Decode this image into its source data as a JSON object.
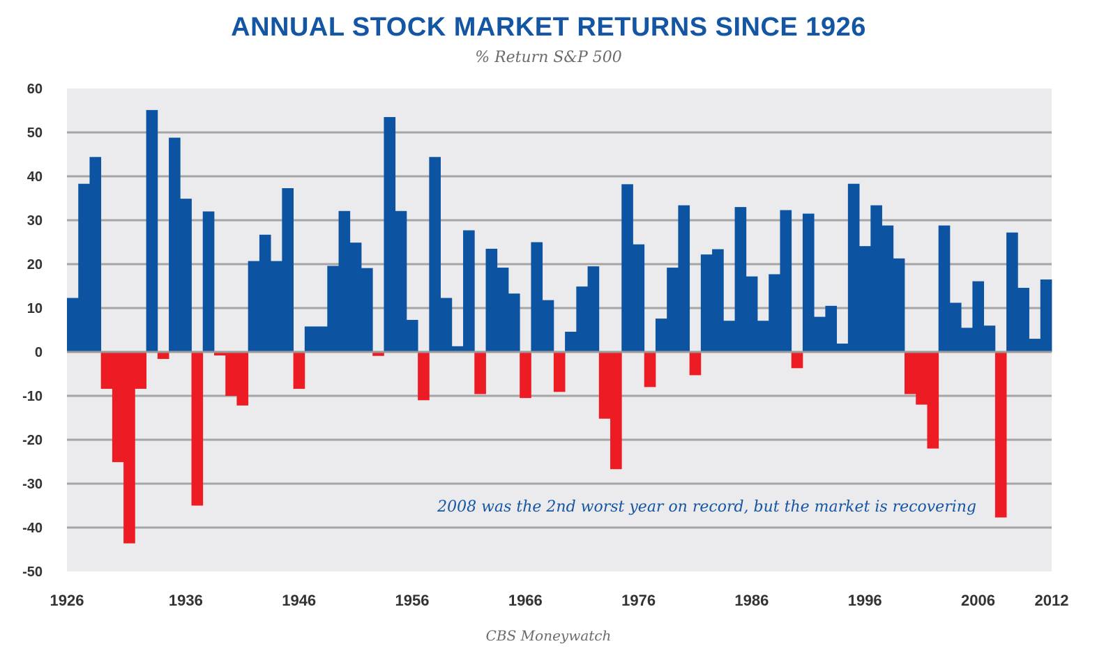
{
  "chart_data": {
    "type": "bar",
    "title": "ANNUAL STOCK MARKET RETURNS SINCE 1926",
    "subtitle": "% Return S&P 500",
    "source": "CBS Moneywatch",
    "annotation": "2008 was the 2nd worst year on record, but the market is recovering",
    "x": [
      1926,
      1927,
      1928,
      1929,
      1930,
      1931,
      1932,
      1933,
      1934,
      1935,
      1936,
      1937,
      1938,
      1939,
      1940,
      1941,
      1942,
      1943,
      1944,
      1945,
      1946,
      1947,
      1948,
      1949,
      1950,
      1951,
      1952,
      1953,
      1954,
      1955,
      1956,
      1957,
      1958,
      1959,
      1960,
      1961,
      1962,
      1963,
      1964,
      1965,
      1966,
      1967,
      1968,
      1969,
      1970,
      1971,
      1972,
      1973,
      1974,
      1975,
      1976,
      1977,
      1978,
      1979,
      1980,
      1981,
      1982,
      1983,
      1984,
      1985,
      1986,
      1987,
      1988,
      1989,
      1990,
      1991,
      1992,
      1993,
      1994,
      1995,
      1996,
      1997,
      1998,
      1999,
      2000,
      2001,
      2002,
      2003,
      2004,
      2005,
      2006,
      2007,
      2008,
      2009,
      2010,
      2011,
      2012
    ],
    "values": [
      12.3,
      38.3,
      44.4,
      -8.4,
      -25.1,
      -43.6,
      -8.4,
      55.1,
      -1.6,
      48.8,
      34.9,
      -35.0,
      32.0,
      -0.8,
      -10.0,
      -12.2,
      20.7,
      26.7,
      20.7,
      37.3,
      -8.4,
      5.8,
      5.8,
      19.6,
      32.1,
      24.9,
      19.1,
      -0.9,
      53.5,
      32.1,
      7.3,
      -11.0,
      44.4,
      12.3,
      1.3,
      27.7,
      -9.6,
      23.5,
      19.2,
      13.3,
      -10.5,
      25.0,
      11.8,
      -9.1,
      4.6,
      14.9,
      19.5,
      -15.2,
      -26.7,
      38.2,
      24.5,
      -8.0,
      7.6,
      19.2,
      33.4,
      -5.3,
      22.2,
      23.4,
      7.1,
      33.0,
      17.2,
      7.1,
      17.7,
      32.3,
      -3.7,
      31.5,
      8.0,
      10.5,
      1.9,
      38.3,
      24.1,
      33.4,
      28.8,
      21.3,
      -9.6,
      -12.0,
      -22.0,
      28.8,
      11.2,
      5.5,
      16.1,
      6.0,
      -37.7,
      27.2,
      14.6,
      3.0,
      16.5
    ],
    "x_tick_labels": [
      "1926",
      "1936",
      "1946",
      "1956",
      "1966",
      "1976",
      "1986",
      "1996",
      "2006",
      "2012"
    ],
    "y_tick_labels": [
      "60",
      "50",
      "40",
      "30",
      "20",
      "10",
      "0",
      "-10",
      "-20",
      "-30",
      "-40",
      "-50"
    ],
    "ylim": [
      -50,
      60
    ],
    "grid": true,
    "colors": {
      "positive": "#0c54a2",
      "negative": "#ed1c24",
      "plot_background": "#ebebed",
      "grid": "#a5a5a5",
      "zero_line": "#9a9a9a"
    }
  }
}
